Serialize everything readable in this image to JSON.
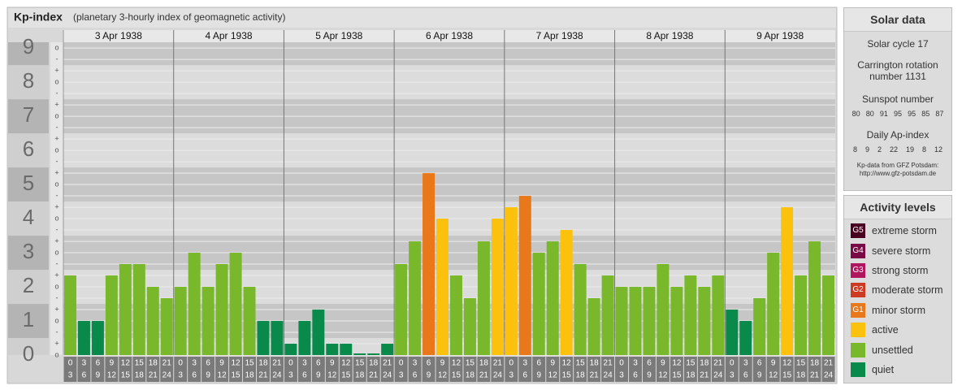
{
  "chart_data": {
    "type": "bar",
    "title": "Kp-index",
    "subtitle": "(planetary 3-hourly index of geomagnetic activity)",
    "ylim": [
      0,
      9.17
    ],
    "yticks": [
      0,
      1,
      2,
      3,
      4,
      5,
      6,
      7,
      8,
      9
    ],
    "ysubticks": [
      {
        "value": 9,
        "label": "o"
      },
      {
        "value": 8.667,
        "label": "-"
      },
      {
        "value": 8.333,
        "label": "+"
      },
      {
        "value": 8,
        "label": "o"
      },
      {
        "value": 7.667,
        "label": "-"
      },
      {
        "value": 7.333,
        "label": "+"
      },
      {
        "value": 7,
        "label": "o"
      },
      {
        "value": 6.667,
        "label": "-"
      },
      {
        "value": 6.333,
        "label": "+"
      },
      {
        "value": 6,
        "label": "o"
      },
      {
        "value": 5.667,
        "label": "-"
      },
      {
        "value": 5.333,
        "label": "+"
      },
      {
        "value": 5,
        "label": "o"
      },
      {
        "value": 4.667,
        "label": "-"
      },
      {
        "value": 4.333,
        "label": "+"
      },
      {
        "value": 4,
        "label": "o"
      },
      {
        "value": 3.667,
        "label": "-"
      },
      {
        "value": 3.333,
        "label": "+"
      },
      {
        "value": 3,
        "label": "o"
      },
      {
        "value": 2.667,
        "label": "-"
      },
      {
        "value": 2.333,
        "label": "+"
      },
      {
        "value": 2,
        "label": "o"
      },
      {
        "value": 1.667,
        "label": "-"
      },
      {
        "value": 1.333,
        "label": "+"
      },
      {
        "value": 1,
        "label": "o"
      },
      {
        "value": 0.667,
        "label": "-"
      },
      {
        "value": 0.333,
        "label": "+"
      },
      {
        "value": 0,
        "label": "o"
      }
    ],
    "hours": [
      [
        "0",
        "3"
      ],
      [
        "3",
        "6"
      ],
      [
        "6",
        "9"
      ],
      [
        "9",
        "12"
      ],
      [
        "12",
        "15"
      ],
      [
        "15",
        "18"
      ],
      [
        "18",
        "21"
      ],
      [
        "21",
        "24"
      ]
    ],
    "days": [
      {
        "date": "3 Apr 1938",
        "values": [
          2.333,
          1,
          1,
          2.333,
          2.667,
          2.667,
          2,
          1.667
        ],
        "colors": [
          "#78b82a",
          "#0a8a4a",
          "#0a8a4a",
          "#78b82a",
          "#78b82a",
          "#78b82a",
          "#78b82a",
          "#78b82a"
        ]
      },
      {
        "date": "4 Apr 1938",
        "values": [
          2,
          3,
          2,
          2.667,
          3,
          2,
          1,
          1
        ],
        "colors": [
          "#78b82a",
          "#78b82a",
          "#78b82a",
          "#78b82a",
          "#78b82a",
          "#78b82a",
          "#0a8a4a",
          "#0a8a4a"
        ]
      },
      {
        "date": "5 Apr 1938",
        "values": [
          0.333,
          1,
          1.333,
          0.333,
          0.333,
          0,
          0,
          0.333
        ],
        "colors": [
          "#0a8a4a",
          "#0a8a4a",
          "#0a8a4a",
          "#0a8a4a",
          "#0a8a4a",
          "#0a8a4a",
          "#0a8a4a",
          "#0a8a4a"
        ]
      },
      {
        "date": "6 Apr 1938",
        "values": [
          2.667,
          3.333,
          5.333,
          4,
          2.333,
          1.667,
          3.333,
          4
        ],
        "colors": [
          "#78b82a",
          "#78b82a",
          "#e8781a",
          "#fcc10c",
          "#78b82a",
          "#78b82a",
          "#78b82a",
          "#fcc10c"
        ]
      },
      {
        "date": "7 Apr 1938",
        "values": [
          4.333,
          4.667,
          3,
          3.333,
          3.667,
          2.667,
          1.667,
          2.333
        ],
        "colors": [
          "#fcc10c",
          "#e8781a",
          "#78b82a",
          "#78b82a",
          "#fcc10c",
          "#78b82a",
          "#78b82a",
          "#78b82a"
        ]
      },
      {
        "date": "8 Apr 1938",
        "values": [
          2,
          2,
          2,
          2.667,
          2,
          2.333,
          2,
          2.333
        ],
        "colors": [
          "#78b82a",
          "#78b82a",
          "#78b82a",
          "#78b82a",
          "#78b82a",
          "#78b82a",
          "#78b82a",
          "#78b82a"
        ]
      },
      {
        "date": "9 Apr 1938",
        "values": [
          1.333,
          1,
          1.667,
          3,
          4.333,
          2.333,
          3.333,
          2.333
        ],
        "colors": [
          "#0a8a4a",
          "#0a8a4a",
          "#78b82a",
          "#78b82a",
          "#fcc10c",
          "#78b82a",
          "#78b82a",
          "#78b82a"
        ]
      }
    ]
  },
  "solar": {
    "title": "Solar data",
    "cycle": "Solar cycle 17",
    "carrington": "Carrington rotation number 1131",
    "sunspot_title": "Sunspot number",
    "sunspot": [
      80,
      80,
      91,
      95,
      95,
      85,
      87
    ],
    "ap_title": "Daily Ap-index",
    "ap": [
      8,
      9,
      2,
      22,
      19,
      8,
      12
    ],
    "source": "Kp-data from GFZ Potsdam:",
    "url": "http://www.gfz-potsdam.de"
  },
  "legend": {
    "title": "Activity levels",
    "items": [
      {
        "badge": "G5",
        "name": "extreme storm",
        "color": "#4a0020"
      },
      {
        "badge": "G4",
        "name": "severe storm",
        "color": "#7a0a45"
      },
      {
        "badge": "G3",
        "name": "strong storm",
        "color": "#b0155e"
      },
      {
        "badge": "G2",
        "name": "moderate storm",
        "color": "#cc3a22"
      },
      {
        "badge": "G1",
        "name": "minor storm",
        "color": "#e8781a"
      },
      {
        "name": "active",
        "color": "#fcc10c"
      },
      {
        "name": "unsettled",
        "color": "#78b82a"
      },
      {
        "name": "quiet",
        "color": "#0a8a4a"
      }
    ]
  }
}
